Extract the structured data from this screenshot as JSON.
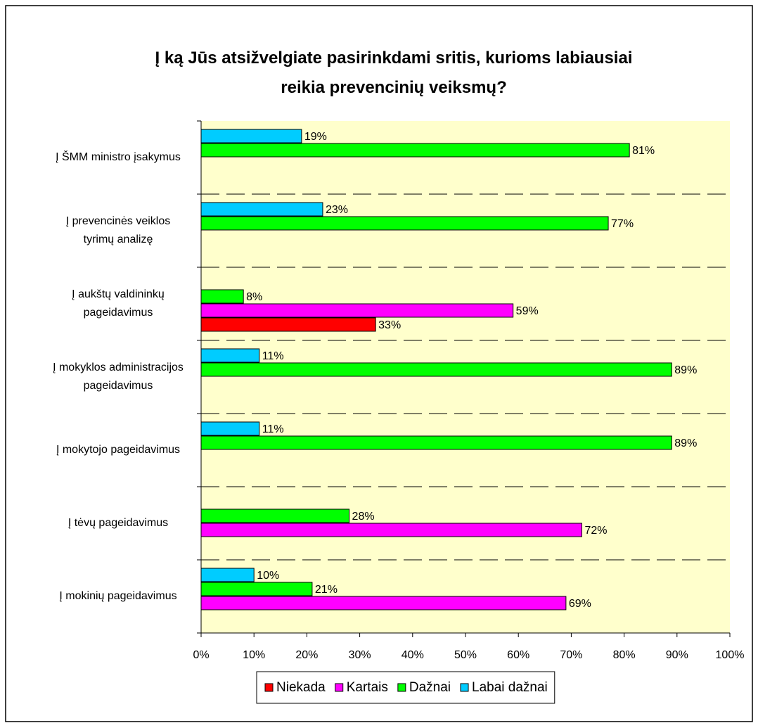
{
  "chart_data": {
    "type": "bar",
    "orientation": "horizontal",
    "title": "Į ką Jūs atsižvelgiate pasirinkdami sritis, kurioms labiausiai\nreikia prevencinių veiksmų?",
    "categories": [
      "Į ŠMM ministro įsakymus",
      "Į prevencinės veiklos\ntyrimų analizę",
      "Į aukštų valdininkų\npageidavimus",
      "Į mokyklos administracijos\npageidavimus",
      "Į mokytojo pageidavimus",
      "Į tėvų pageidavimus",
      "Į mokinių pageidavimus"
    ],
    "series": [
      {
        "name": "Niekada",
        "color": "#ff0000",
        "values": [
          null,
          null,
          33,
          null,
          null,
          null,
          null
        ],
        "value_labels": [
          null,
          null,
          "33%",
          null,
          null,
          null,
          null
        ]
      },
      {
        "name": "Kartais",
        "color": "#ff00ff",
        "values": [
          null,
          null,
          59,
          null,
          null,
          72,
          69
        ],
        "value_labels": [
          null,
          null,
          "59%",
          null,
          null,
          "72%",
          "69%"
        ]
      },
      {
        "name": "Dažnai",
        "color": "#00ff00",
        "values": [
          81,
          77,
          8,
          89,
          89,
          28,
          21
        ],
        "value_labels": [
          "81%",
          "77%",
          "8%",
          "89%",
          "89%",
          "28%",
          "21%"
        ]
      },
      {
        "name": "Labai dažnai",
        "color": "#00ccff",
        "values": [
          19,
          23,
          null,
          11,
          11,
          null,
          10
        ],
        "value_labels": [
          "19%",
          "23%",
          null,
          "11%",
          "11%",
          null,
          "10%"
        ]
      }
    ],
    "xlim": [
      0,
      100
    ],
    "xticks": [
      {
        "value": 0,
        "label": "0%"
      },
      {
        "value": 10,
        "label": "10%"
      },
      {
        "value": 20,
        "label": "20%"
      },
      {
        "value": 30,
        "label": "30%"
      },
      {
        "value": 40,
        "label": "40%"
      },
      {
        "value": 50,
        "label": "50%"
      },
      {
        "value": 60,
        "label": "60%"
      },
      {
        "value": 70,
        "label": "70%"
      },
      {
        "value": 80,
        "label": "80%"
      },
      {
        "value": 90,
        "label": "90%"
      },
      {
        "value": 100,
        "label": "100%"
      }
    ],
    "legend": "bottom",
    "background": "#ffffcc"
  }
}
